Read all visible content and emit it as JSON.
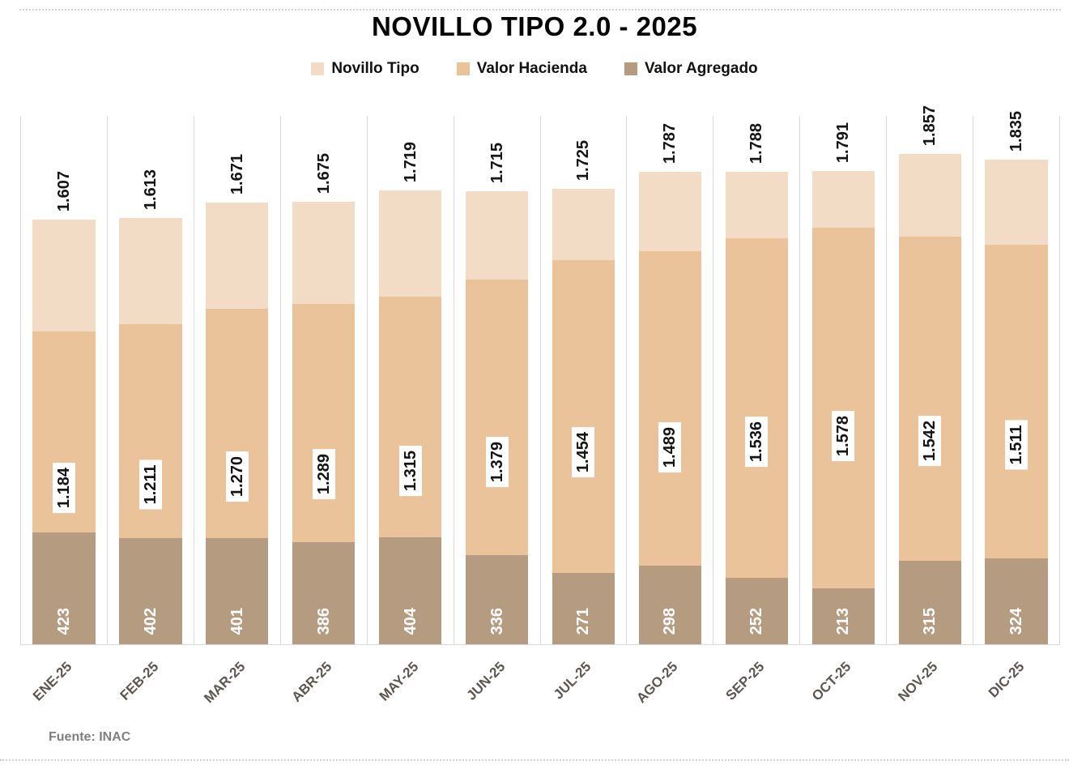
{
  "title": "NOVILLO TIPO 2.0 - 2025",
  "legend": {
    "items": [
      {
        "label": "Novillo Tipo",
        "color": "#f2dcc6"
      },
      {
        "label": "Valor Hacienda",
        "color": "#eac39b"
      },
      {
        "label": "Valor Agregado",
        "color": "#b59b80"
      }
    ]
  },
  "source": {
    "text": "Fuente: INAC"
  },
  "chart_data": {
    "type": "bar",
    "subtype": "overlapping-columns (each series drawn from baseline; Novillo Tipo = Valor Hacienda + Valor Agregado)",
    "title": "NOVILLO TIPO 2.0 - 2025",
    "categories": [
      "ENE-25",
      "FEB-25",
      "MAR-25",
      "ABR-25",
      "MAY-25",
      "JUN-25",
      "JUL-25",
      "AGO-25",
      "SEP-25",
      "OCT-25",
      "NOV-25",
      "DIC-25"
    ],
    "series": [
      {
        "name": "Novillo Tipo",
        "color": "#f2dcc6",
        "values": [
          1607,
          1613,
          1671,
          1675,
          1719,
          1715,
          1725,
          1787,
          1788,
          1791,
          1857,
          1835
        ],
        "labels": [
          "1.607",
          "1.613",
          "1.671",
          "1.675",
          "1.719",
          "1.715",
          "1.725",
          "1.787",
          "1.788",
          "1.791",
          "1.857",
          "1.835"
        ],
        "label_position": "outside-end"
      },
      {
        "name": "Valor Hacienda",
        "color": "#eac39b",
        "values": [
          1184,
          1211,
          1270,
          1289,
          1315,
          1379,
          1454,
          1489,
          1536,
          1578,
          1542,
          1511
        ],
        "labels": [
          "1.184",
          "1.211",
          "1.270",
          "1.289",
          "1.315",
          "1.379",
          "1.454",
          "1.489",
          "1.536",
          "1.578",
          "1.542",
          "1.511"
        ],
        "label_position": "center-on-white-box"
      },
      {
        "name": "Valor Agregado",
        "color": "#b59b80",
        "values": [
          423,
          402,
          401,
          386,
          404,
          336,
          271,
          298,
          252,
          213,
          315,
          324
        ],
        "labels": [
          "423",
          "402",
          "401",
          "386",
          "404",
          "336",
          "271",
          "298",
          "252",
          "213",
          "315",
          "324"
        ],
        "label_position": "inside-base"
      }
    ],
    "xlabel": "",
    "ylabel": "",
    "ylim": [
      0,
      2000
    ],
    "grid": "vertical category separator lines only, color #d9d9d9; baseline axis line at bottom",
    "legend_position": "top",
    "value_label_rotation": "vertical (reads bottom-to-top)",
    "category_label_rotation": "45deg"
  }
}
